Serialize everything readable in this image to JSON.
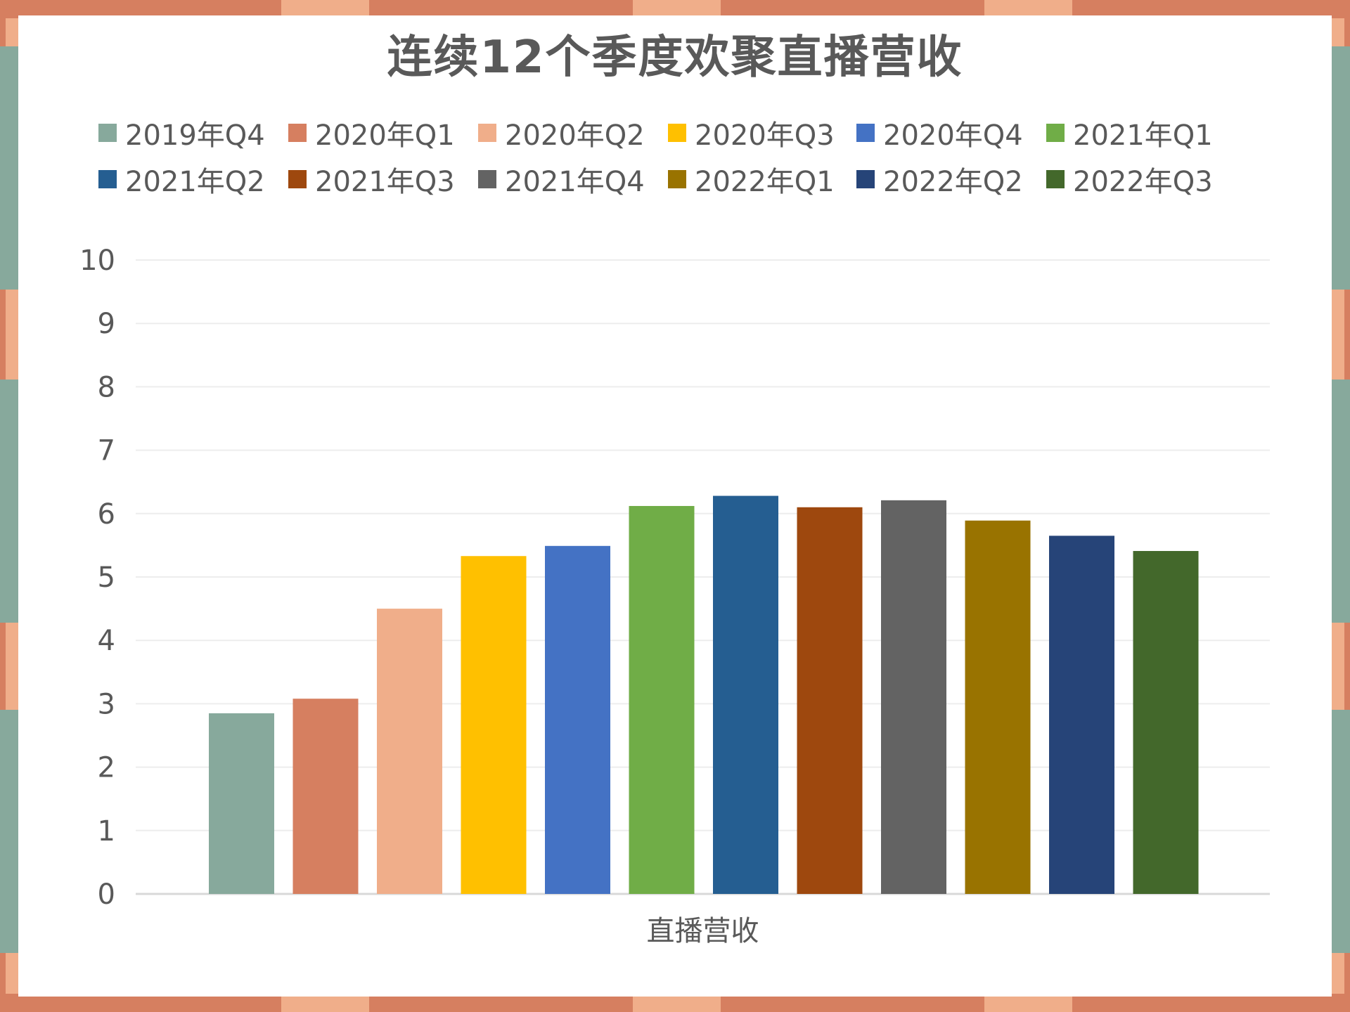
{
  "chart_data": {
    "type": "bar",
    "title": "连续12个季度欢聚直播营收",
    "categories": [
      "直播营收"
    ],
    "xlabel": "",
    "ylabel": "",
    "ylim": [
      0,
      10
    ],
    "yticks": [
      0,
      1,
      2,
      3,
      4,
      5,
      6,
      7,
      8,
      9,
      10
    ],
    "grid": true,
    "legend_position": "top",
    "series": [
      {
        "name": "2019年Q4",
        "values": [
          2.85
        ],
        "color": "#87A99C"
      },
      {
        "name": "2020年Q1",
        "values": [
          3.08
        ],
        "color": "#D67F60"
      },
      {
        "name": "2020年Q2",
        "values": [
          4.5
        ],
        "color": "#F0AE8A"
      },
      {
        "name": "2020年Q3",
        "values": [
          5.33
        ],
        "color": "#FFC000"
      },
      {
        "name": "2020年Q4",
        "values": [
          5.49
        ],
        "color": "#4472C4"
      },
      {
        "name": "2021年Q1",
        "values": [
          6.12
        ],
        "color": "#70AD47"
      },
      {
        "name": "2021年Q2",
        "values": [
          6.28
        ],
        "color": "#255E91"
      },
      {
        "name": "2021年Q3",
        "values": [
          6.1
        ],
        "color": "#9E480E"
      },
      {
        "name": "2021年Q4",
        "values": [
          6.21
        ],
        "color": "#636363"
      },
      {
        "name": "2022年Q1",
        "values": [
          5.89
        ],
        "color": "#997300"
      },
      {
        "name": "2022年Q2",
        "values": [
          5.65
        ],
        "color": "#264478"
      },
      {
        "name": "2022年Q3",
        "values": [
          5.41
        ],
        "color": "#43682B"
      }
    ]
  },
  "frame_colors": {
    "border_dark": "#D67F60",
    "border_light": "#F0AE8A",
    "tab_green": "#87A99C",
    "background": "#FFFFFF"
  }
}
